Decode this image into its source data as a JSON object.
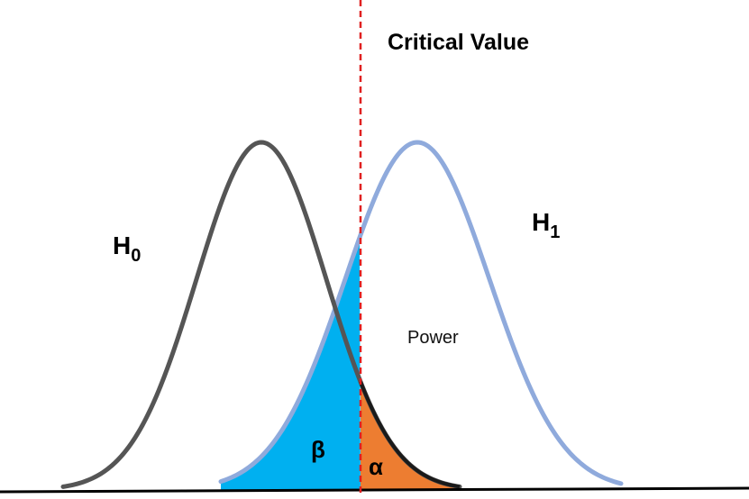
{
  "diagram": {
    "critical_value_label": "Critical Value",
    "h0_label": "H",
    "h0_subscript": "0",
    "h1_label": "H",
    "h1_subscript": "1",
    "power_label": "Power",
    "beta_label": "β",
    "alpha_label": "α"
  },
  "colors": {
    "h0_curve": "#555555",
    "h1_curve": "#8faadc",
    "beta_fill": "#00b0f0",
    "alpha_fill": "#ed7d31",
    "critical_line": "#e02020",
    "baseline": "#000000"
  },
  "icons": []
}
